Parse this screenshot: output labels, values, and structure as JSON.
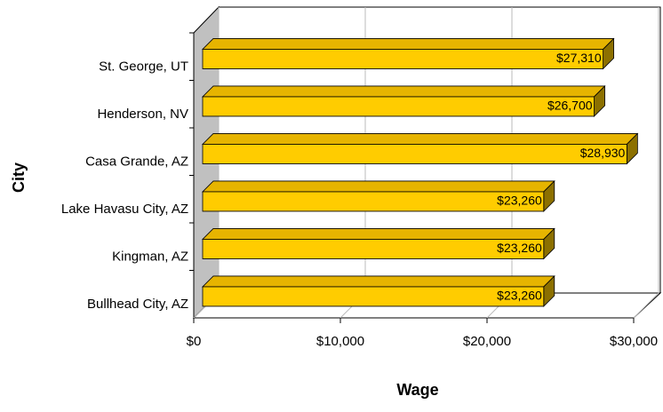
{
  "chart_data": {
    "type": "bar3d_horizontal",
    "x_label": "Wage",
    "y_label": "City",
    "categories": [
      "St. George, UT",
      "Henderson, NV",
      "Casa Grande, AZ",
      "Lake Havasu City, AZ",
      "Kingman, AZ",
      "Bullhead City, AZ"
    ],
    "values": [
      27310,
      26700,
      28930,
      23260,
      23260,
      23260
    ],
    "value_labels": [
      "$27,310",
      "$26,700",
      "$28,930",
      "$23,260",
      "$23,260",
      "$23,260"
    ],
    "color": "#ffcc00",
    "xlim": [
      0,
      30000
    ],
    "xticks": [
      {
        "value": 0,
        "label": "$0"
      },
      {
        "value": 10000,
        "label": "$10,000"
      },
      {
        "value": 20000,
        "label": "$20,000"
      },
      {
        "value": 30000,
        "label": "$30,000"
      }
    ],
    "grid": true
  }
}
